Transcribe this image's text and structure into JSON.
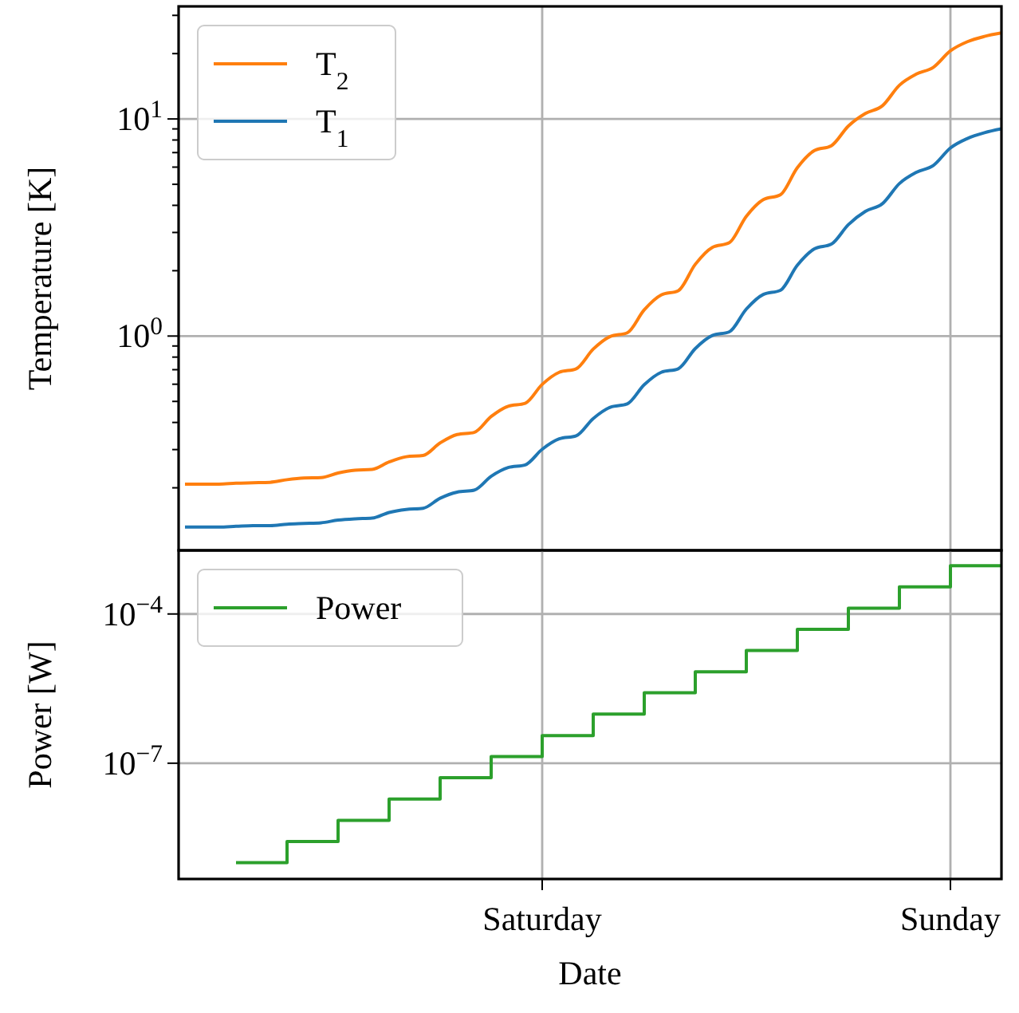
{
  "chart_data": [
    {
      "type": "line",
      "ylabel": "Temperature [K]",
      "log": true,
      "grid": true,
      "legend": "top left",
      "tick_labels": "y",
      "categories": [
        null,
        null,
        null,
        null,
        null,
        null,
        null,
        null,
        null,
        null,
        null,
        null,
        null,
        null,
        null,
        null,
        null,
        null,
        null,
        null,
        null,
        null,
        null,
        null,
        null,
        null,
        null,
        null,
        null,
        null,
        null,
        null,
        null,
        null,
        null,
        null,
        null,
        null,
        null,
        null,
        null,
        null,
        null,
        null,
        null,
        null,
        null,
        null,
        null
      ],
      "ylim": [
        0.103,
        33
      ],
      "yticks": [
        {
          "value": 0.2,
          "label": null
        },
        {
          "value": 0.3,
          "label": null
        },
        {
          "value": 0.4,
          "label": null
        },
        {
          "value": 0.5,
          "label": null
        },
        {
          "value": 0.6,
          "label": null
        },
        {
          "value": 0.7,
          "label": null
        },
        {
          "value": 0.8,
          "label": null
        },
        {
          "value": 0.9,
          "label": null
        },
        {
          "value": 1,
          "label": "10$^{0}$"
        },
        {
          "value": 2,
          "label": null
        },
        {
          "value": 3,
          "label": null
        },
        {
          "value": 4,
          "label": null
        },
        {
          "value": 5,
          "label": null
        },
        {
          "value": 6,
          "label": null
        },
        {
          "value": 7,
          "label": null
        },
        {
          "value": 8,
          "label": null
        },
        {
          "value": 9,
          "label": null
        },
        {
          "value": 10,
          "label": "10$^{1}$"
        },
        {
          "value": 20,
          "label": null
        },
        {
          "value": 30,
          "label": null
        }
      ],
      "series": [
        {
          "name": "T$_{2}$",
          "color": "#ff7f0e",
          "values": [
            0.208,
            0.208,
            0.208,
            0.21,
            0.211,
            0.212,
            0.218,
            0.222,
            0.223,
            0.234,
            0.241,
            0.243,
            0.263,
            0.278,
            0.282,
            0.322,
            0.352,
            0.36,
            0.426,
            0.475,
            0.49,
            0.599,
            0.681,
            0.707,
            0.871,
            0.996,
            1.035,
            1.321,
            1.547,
            1.618,
            2.14,
            2.56,
            2.69,
            3.56,
            4.25,
            4.47,
            5.96,
            7.15,
            7.53,
            9.28,
            10.6,
            11.5,
            14.3,
            16.1,
            17.3,
            20.6,
            22.7,
            24.0,
            24.9
          ]
        },
        {
          "name": "T$_{1}$",
          "color": "#1f77b4",
          "values": [
            0.132,
            0.132,
            0.132,
            0.133,
            0.134,
            0.134,
            0.136,
            0.137,
            0.138,
            0.142,
            0.144,
            0.145,
            0.154,
            0.159,
            0.161,
            0.179,
            0.191,
            0.195,
            0.226,
            0.248,
            0.255,
            0.301,
            0.336,
            0.347,
            0.417,
            0.47,
            0.487,
            0.597,
            0.681,
            0.707,
            0.876,
            1.006,
            1.046,
            1.331,
            1.555,
            1.624,
            2.12,
            2.52,
            2.65,
            3.26,
            3.75,
            4.07,
            5.04,
            5.68,
            6.11,
            7.35,
            8.13,
            8.64,
            9.0
          ]
        }
      ]
    },
    {
      "type": "step",
      "xlabel": "Date",
      "ylabel": "Power [W]",
      "log": true,
      "grid": true,
      "legend": "top left",
      "categories": [
        null,
        null,
        null,
        null,
        null,
        null,
        null,
        null,
        null,
        null,
        null,
        null,
        null,
        null,
        null,
        null,
        null,
        null,
        null,
        null,
        null,
        "Saturday",
        null,
        null,
        null,
        null,
        null,
        null,
        null,
        null,
        null,
        null,
        null,
        null,
        null,
        null,
        null,
        null,
        null,
        null,
        null,
        null,
        null,
        null,
        null,
        "Sunday",
        null,
        null,
        null
      ],
      "ylim": [
        4.7e-10,
        0.0019
      ],
      "yticks": [
        {
          "value": 1e-07,
          "label": "10$^{−7}$"
        },
        {
          "value": 0.0001,
          "label": "10$^{−4}$"
        }
      ],
      "series": [
        {
          "name": "Power",
          "color": "#2ca02c",
          "values": [
            null,
            null,
            null,
            1e-09,
            1e-09,
            1e-09,
            2.67e-09,
            2.67e-09,
            2.67e-09,
            7.1e-09,
            7.1e-09,
            7.1e-09,
            1.9e-08,
            1.9e-08,
            1.9e-08,
            5.1e-08,
            5.1e-08,
            5.1e-08,
            1.36e-07,
            1.36e-07,
            1.36e-07,
            3.6e-07,
            3.6e-07,
            3.6e-07,
            9.7e-07,
            9.7e-07,
            9.7e-07,
            2.6e-06,
            2.6e-06,
            2.6e-06,
            6.9e-06,
            6.9e-06,
            6.9e-06,
            1.84e-05,
            1.84e-05,
            1.84e-05,
            4.9e-05,
            4.9e-05,
            4.9e-05,
            0.000131,
            0.000131,
            0.000131,
            0.00035,
            0.00035,
            0.00035,
            0.00093,
            0.00093,
            0.00093,
            0.00093
          ]
        }
      ]
    }
  ]
}
